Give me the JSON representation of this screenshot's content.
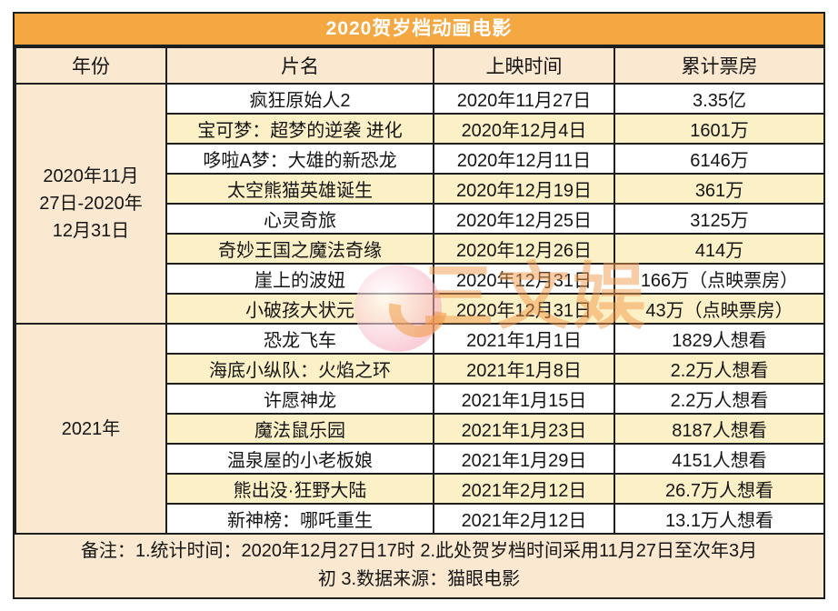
{
  "title": "2020贺岁档动画电影",
  "watermark": {
    "text": "三文娱"
  },
  "colors": {
    "title_bg": "#F5A842",
    "title_text": "#FFFFFF",
    "header_bg": "#FAE9D0",
    "alt_row_bg": "#FCF0C6",
    "white_row_bg": "#FFFFFF",
    "border": "#1F1F1F",
    "watermark_orange": "#F2994A",
    "watermark_pink": "#F6A8BA"
  },
  "table": {
    "headers": [
      "年份",
      "片名",
      "上映时间",
      "累计票房"
    ],
    "groups": [
      {
        "year": "2020年11月27日-2020年12月31日",
        "year_lines": [
          "2020年11月",
          "27日-2020年",
          "12月31日"
        ],
        "rows": [
          {
            "film": "疯狂原始人2",
            "release": "2020年11月27日",
            "box": "3.35亿"
          },
          {
            "film": "宝可梦：超梦的逆袭 进化",
            "release": "2020年12月4日",
            "box": "1601万"
          },
          {
            "film": "哆啦A梦：大雄的新恐龙",
            "release": "2020年12月11日",
            "box": "6146万"
          },
          {
            "film": "太空熊猫英雄诞生",
            "release": "2020年12月19日",
            "box": "361万"
          },
          {
            "film": "心灵奇旅",
            "release": "2020年12月25日",
            "box": "3125万"
          },
          {
            "film": "奇妙王国之魔法奇缘",
            "release": "2020年12月26日",
            "box": "414万"
          },
          {
            "film": "崖上的波妞",
            "release": "2020年12月31日",
            "box": "166万（点映票房）"
          },
          {
            "film": "小破孩大状元",
            "release": "2020年12月31日",
            "box": "43万（点映票房）"
          }
        ]
      },
      {
        "year": "2021年",
        "year_lines": [
          "2021年"
        ],
        "rows": [
          {
            "film": "恐龙飞车",
            "release": "2021年1月1日",
            "box": "1829人想看"
          },
          {
            "film": "海底小纵队：火焰之环",
            "release": "2021年1月8日",
            "box": "2.2万人想看"
          },
          {
            "film": "许愿神龙",
            "release": "2021年1月15日",
            "box": "2.2万人想看"
          },
          {
            "film": "魔法鼠乐园",
            "release": "2021年1月23日",
            "box": "8187人想看"
          },
          {
            "film": "温泉屋的小老板娘",
            "release": "2021年1月29日",
            "box": "4151人想看"
          },
          {
            "film": "熊出没·狂野大陆",
            "release": "2021年2月12日",
            "box": "26.7万人想看"
          },
          {
            "film": "新神榜：哪吒重生",
            "release": "2021年2月12日",
            "box": "13.1万人想看"
          }
        ]
      }
    ],
    "note_lines": [
      "备注：1.统计时间：2020年12月27日17时  2.此处贺岁档时间采用11月27日至次年3月",
      "初  3.数据来源：猫眼电影"
    ]
  },
  "chart_data": {
    "type": "table",
    "title": "2020贺岁档动画电影",
    "columns": [
      "年份",
      "片名",
      "上映时间",
      "累计票房"
    ],
    "rows": [
      [
        "2020年11月27日-2020年12月31日",
        "疯狂原始人2",
        "2020年11月27日",
        "3.35亿"
      ],
      [
        "2020年11月27日-2020年12月31日",
        "宝可梦：超梦的逆袭 进化",
        "2020年12月4日",
        "1601万"
      ],
      [
        "2020年11月27日-2020年12月31日",
        "哆啦A梦：大雄的新恐龙",
        "2020年12月11日",
        "6146万"
      ],
      [
        "2020年11月27日-2020年12月31日",
        "太空熊猫英雄诞生",
        "2020年12月19日",
        "361万"
      ],
      [
        "2020年11月27日-2020年12月31日",
        "心灵奇旅",
        "2020年12月25日",
        "3125万"
      ],
      [
        "2020年11月27日-2020年12月31日",
        "奇妙王国之魔法奇缘",
        "2020年12月26日",
        "414万"
      ],
      [
        "2020年11月27日-2020年12月31日",
        "崖上的波妞",
        "2020年12月31日",
        "166万（点映票房）"
      ],
      [
        "2020年11月27日-2020年12月31日",
        "小破孩大状元",
        "2020年12月31日",
        "43万（点映票房）"
      ],
      [
        "2021年",
        "恐龙飞车",
        "2021年1月1日",
        "1829人想看"
      ],
      [
        "2021年",
        "海底小纵队：火焰之环",
        "2021年1月8日",
        "2.2万人想看"
      ],
      [
        "2021年",
        "许愿神龙",
        "2021年1月15日",
        "2.2万人想看"
      ],
      [
        "2021年",
        "魔法鼠乐园",
        "2021年1月23日",
        "8187人想看"
      ],
      [
        "2021年",
        "温泉屋的小老板娘",
        "2021年1月29日",
        "4151人想看"
      ],
      [
        "2021年",
        "熊出没·狂野大陆",
        "2021年2月12日",
        "26.7万人想看"
      ],
      [
        "2021年",
        "新神榜：哪吒重生",
        "2021年2月12日",
        "13.1万人想看"
      ]
    ],
    "note": "备注：1.统计时间：2020年12月27日17时  2.此处贺岁档时间采用11月27日至次年3月初  3.数据来源：猫眼电影"
  }
}
